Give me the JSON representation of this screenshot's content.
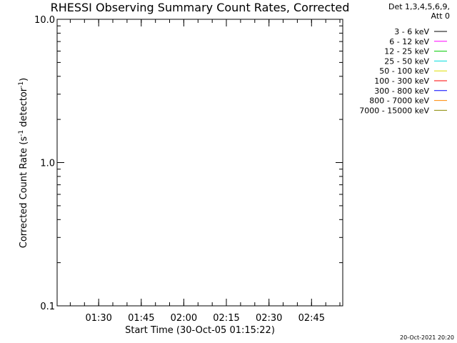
{
  "chart_data": {
    "type": "line",
    "title": "RHESSI Observing Summary Count Rates, Corrected",
    "ylabel": "Corrected Count Rate (s",
    "ylabel_sup1": "-1",
    "ylabel_mid": " detector",
    "ylabel_sup2": "-1",
    "ylabel_end": ")",
    "xlabel": "Start Time (30-Oct-05 01:15:22)",
    "y_scale": "log",
    "ylim": [
      0.1,
      10.0
    ],
    "xlim": [
      "01:15:22",
      "02:56:00"
    ],
    "y_ticks": [
      {
        "value": 0.1,
        "label": "0.1"
      },
      {
        "value": 1.0,
        "label": "1.0"
      },
      {
        "value": 10.0,
        "label": "10.0"
      }
    ],
    "x_ticks": [
      {
        "value": "01:30",
        "label": "01:30"
      },
      {
        "value": "01:45",
        "label": "01:45"
      },
      {
        "value": "02:00",
        "label": "02:00"
      },
      {
        "value": "02:15",
        "label": "02:15"
      },
      {
        "value": "02:30",
        "label": "02:30"
      },
      {
        "value": "02:45",
        "label": "02:45"
      }
    ],
    "grid": false,
    "legend_placement": "top-right",
    "legend_header": [
      "Det 1,3,4,5,6,9,",
      "Att 0"
    ],
    "series": [
      {
        "name": "3 - 6 keV",
        "color": "#000000",
        "values": []
      },
      {
        "name": "6 - 12 keV",
        "color": "#ff00ff",
        "values": []
      },
      {
        "name": "12 - 25 keV",
        "color": "#00cc00",
        "values": []
      },
      {
        "name": "25 - 50 keV",
        "color": "#00dddd",
        "values": []
      },
      {
        "name": "50 - 100 keV",
        "color": "#dddd00",
        "values": []
      },
      {
        "name": "100 - 300 keV",
        "color": "#ff0000",
        "values": []
      },
      {
        "name": "300 - 800 keV",
        "color": "#0000ff",
        "values": []
      },
      {
        "name": "800 - 7000 keV",
        "color": "#ff8800",
        "values": []
      },
      {
        "name": "7000 - 15000 keV",
        "color": "#888800",
        "values": []
      }
    ]
  },
  "footer_timestamp": "20-Oct-2021 20:20"
}
